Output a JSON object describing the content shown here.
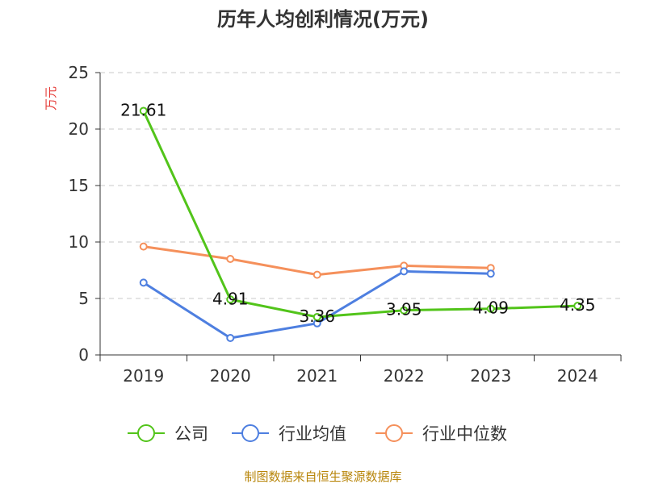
{
  "chart_data": {
    "type": "line",
    "title": "历年人均创利情况(万元)",
    "ylabel": "万元",
    "xlabel": "",
    "ylim": [
      0,
      25
    ],
    "yticks": [
      0,
      5,
      10,
      15,
      20,
      25
    ],
    "grid": true,
    "legend_position": "bottom",
    "categories": [
      "2019",
      "2020",
      "2021",
      "2022",
      "2023",
      "2024"
    ],
    "series": [
      {
        "name": "公司",
        "color": "#52c41a",
        "values": [
          21.61,
          4.91,
          3.36,
          3.95,
          4.09,
          4.35
        ],
        "labels": [
          "21.61",
          "4.91",
          "3.36",
          "3.95",
          "4.09",
          "4.35"
        ]
      },
      {
        "name": "行业均值",
        "color": "#4e7fe0",
        "values": [
          6.4,
          1.5,
          2.8,
          7.4,
          7.2,
          null
        ]
      },
      {
        "name": "行业中位数",
        "color": "#f5905b",
        "values": [
          9.6,
          8.5,
          7.1,
          7.9,
          7.7,
          null
        ]
      }
    ]
  },
  "footer": {
    "source": "制图数据来自恒生聚源数据库"
  }
}
